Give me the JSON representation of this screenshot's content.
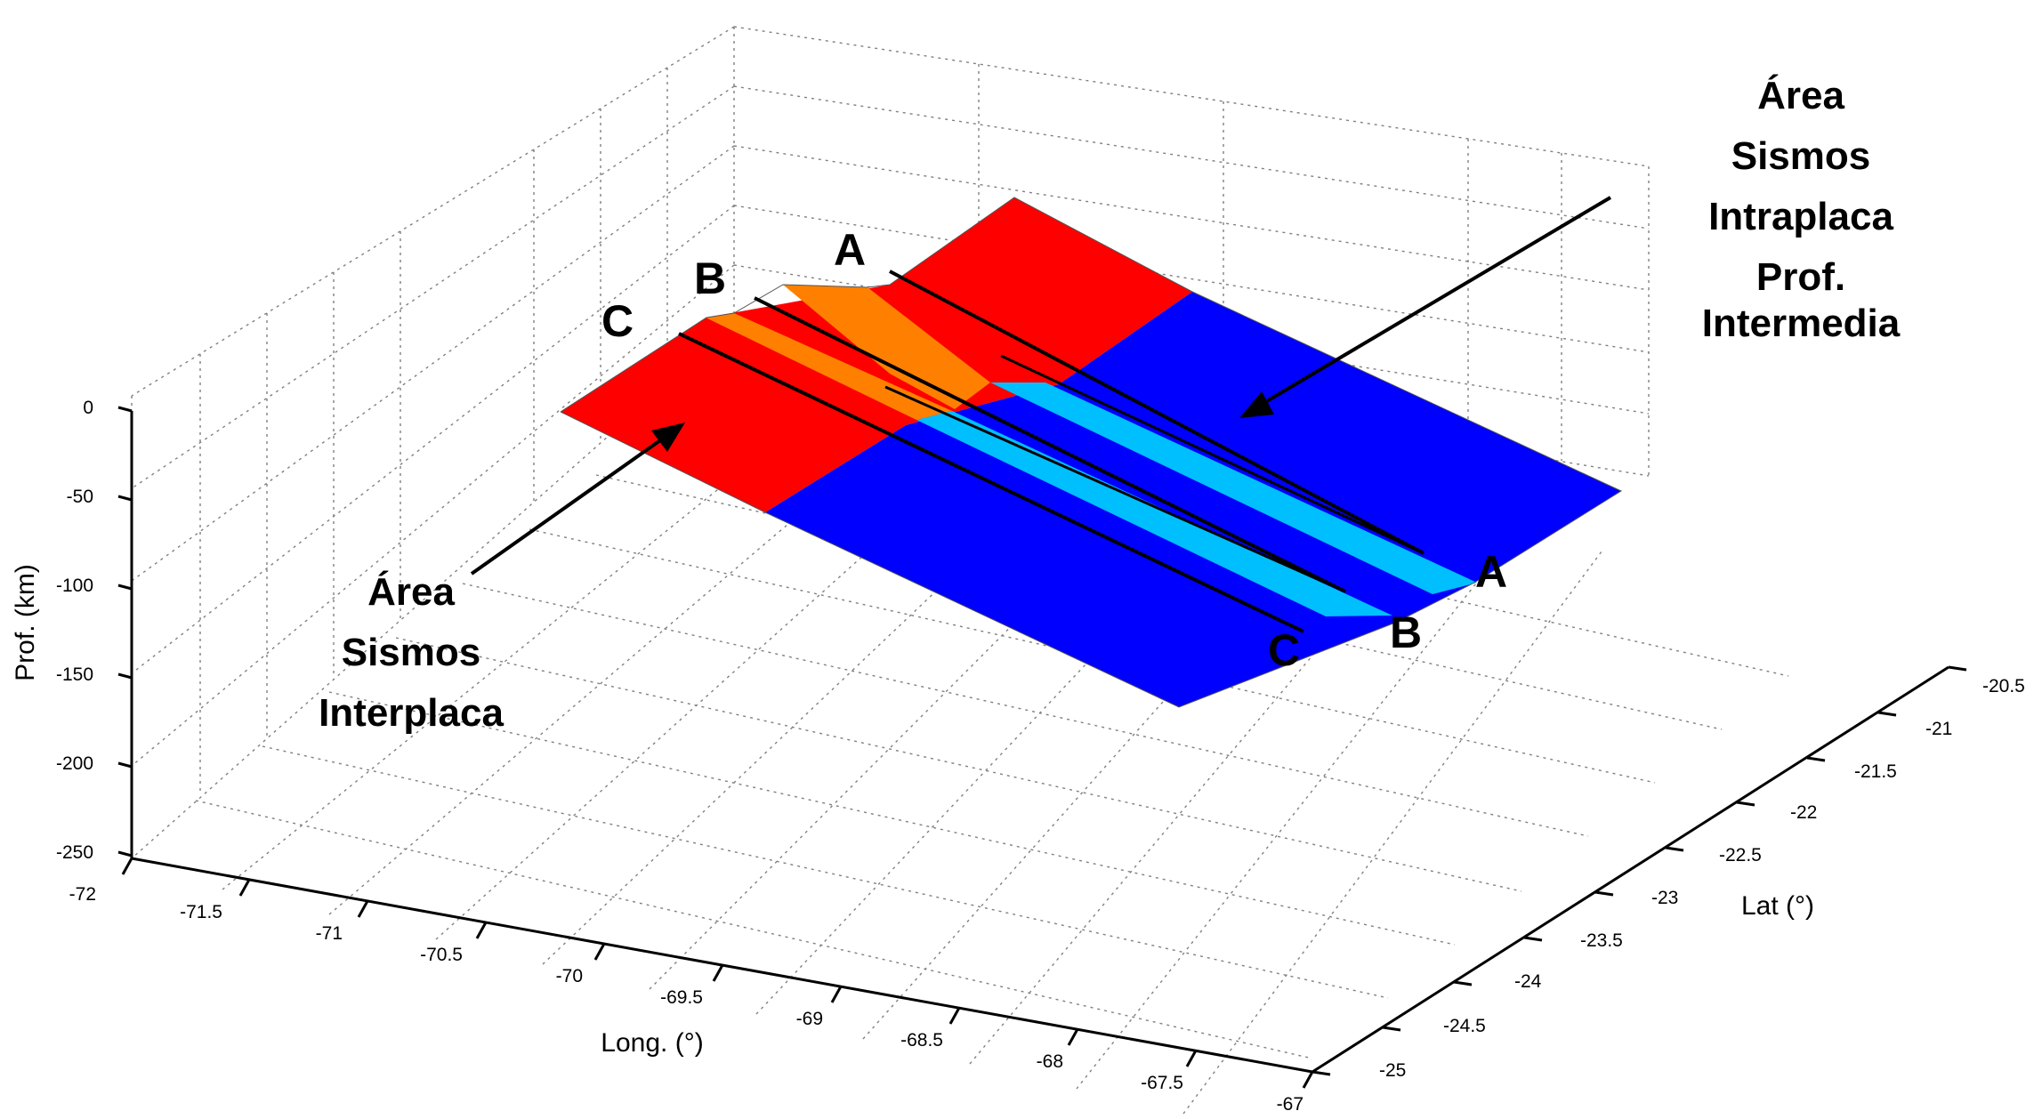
{
  "figure": {
    "axes": {
      "x": {
        "label": "Long. (°)",
        "ticks": [
          "-72",
          "-71.5",
          "-71",
          "-70.5",
          "-70",
          "-69.5",
          "-69",
          "-68.5",
          "-68",
          "-67.5",
          "-67"
        ]
      },
      "y": {
        "label": "Lat (°)",
        "ticks": [
          "-25",
          "-24.5",
          "-24",
          "-23.5",
          "-23",
          "-22.5",
          "-22",
          "-21.5",
          "-21",
          "-20.5"
        ]
      },
      "z": {
        "label": "Prof. (km)",
        "ticks": [
          "0",
          "-50",
          "-100",
          "-150",
          "-200",
          "-250"
        ]
      }
    },
    "annotations": {
      "interplaca": [
        "Área",
        "Sismos",
        "Interplaca"
      ],
      "intraplaca": [
        "Área",
        "Sismos",
        "Intraplaca",
        "Prof.",
        "Intermedia"
      ]
    },
    "section_labels": {
      "a_start": "A",
      "b_start": "B",
      "c_start": "C",
      "a_end": "A",
      "b_end": "B",
      "c_end": "C"
    },
    "colors": {
      "interplaca": "#ff0000",
      "transition_interplaca": "#ff8000",
      "intraplaca": "#0000ff",
      "transition_intraplaca": "#00bfff"
    }
  }
}
